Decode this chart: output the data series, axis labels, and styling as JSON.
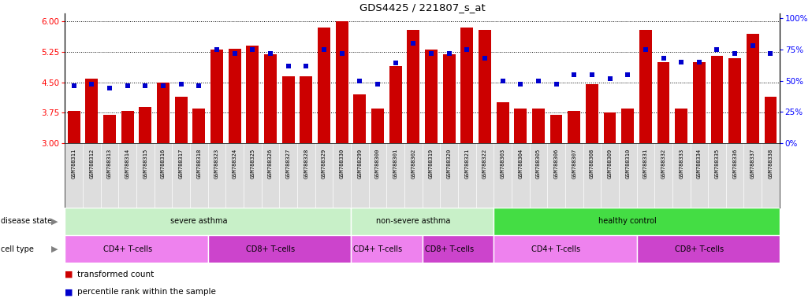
{
  "title": "GDS4425 / 221807_s_at",
  "samples": [
    "GSM788311",
    "GSM788312",
    "GSM788313",
    "GSM788314",
    "GSM788315",
    "GSM788316",
    "GSM788317",
    "GSM788318",
    "GSM788323",
    "GSM788324",
    "GSM788325",
    "GSM788326",
    "GSM788327",
    "GSM788328",
    "GSM788329",
    "GSM788330",
    "GSM788299",
    "GSM788300",
    "GSM788301",
    "GSM788302",
    "GSM788319",
    "GSM788320",
    "GSM788321",
    "GSM788322",
    "GSM788303",
    "GSM788304",
    "GSM788305",
    "GSM788306",
    "GSM788307",
    "GSM788308",
    "GSM788309",
    "GSM788310",
    "GSM788331",
    "GSM788332",
    "GSM788333",
    "GSM788334",
    "GSM788335",
    "GSM788336",
    "GSM788337",
    "GSM788338"
  ],
  "bar_values": [
    3.8,
    4.6,
    3.7,
    3.8,
    3.9,
    4.5,
    4.15,
    3.85,
    5.3,
    5.32,
    5.4,
    5.2,
    4.65,
    4.65,
    5.85,
    6.0,
    4.2,
    3.85,
    4.9,
    5.8,
    5.3,
    5.2,
    5.85,
    5.8,
    4.0,
    3.85,
    3.85,
    3.7,
    3.8,
    4.45,
    3.75,
    3.85,
    5.8,
    5.0,
    3.85,
    5.0,
    5.15,
    5.1,
    5.7,
    4.15
  ],
  "scatter_values": [
    46,
    47,
    44,
    46,
    46,
    46,
    47,
    46,
    75,
    72,
    75,
    72,
    62,
    62,
    75,
    72,
    50,
    47,
    64,
    80,
    72,
    72,
    75,
    68,
    50,
    47,
    50,
    47,
    55,
    55,
    52,
    55,
    75,
    68,
    65,
    65,
    75,
    72,
    78,
    72
  ],
  "disease_state_groups": [
    {
      "label": "severe asthma",
      "start": 0,
      "end": 15,
      "color": "#c8f0c8"
    },
    {
      "label": "non-severe asthma",
      "start": 16,
      "end": 23,
      "color": "#c8f0c8"
    },
    {
      "label": "healthy control",
      "start": 24,
      "end": 39,
      "color": "#44dd44"
    }
  ],
  "cell_type_groups": [
    {
      "label": "CD4+ T-cells",
      "start": 0,
      "end": 7,
      "color": "#ee82ee"
    },
    {
      "label": "CD8+ T-cells",
      "start": 8,
      "end": 15,
      "color": "#cc44cc"
    },
    {
      "label": "CD4+ T-cells",
      "start": 16,
      "end": 19,
      "color": "#ee82ee"
    },
    {
      "label": "CD8+ T-cells",
      "start": 20,
      "end": 23,
      "color": "#cc44cc"
    },
    {
      "label": "CD4+ T-cells",
      "start": 24,
      "end": 31,
      "color": "#ee82ee"
    },
    {
      "label": "CD8+ T-cells",
      "start": 32,
      "end": 39,
      "color": "#cc44cc"
    }
  ],
  "ylim_left": [
    3.0,
    6.2
  ],
  "ylim_right": [
    0,
    104
  ],
  "yticks_left": [
    3.0,
    3.75,
    4.5,
    5.25,
    6.0
  ],
  "yticks_right": [
    0,
    25,
    50,
    75,
    100
  ],
  "bar_color": "#cc0000",
  "scatter_color": "#0000cc",
  "background_color": "#ffffff",
  "label_bg_color": "#dddddd"
}
